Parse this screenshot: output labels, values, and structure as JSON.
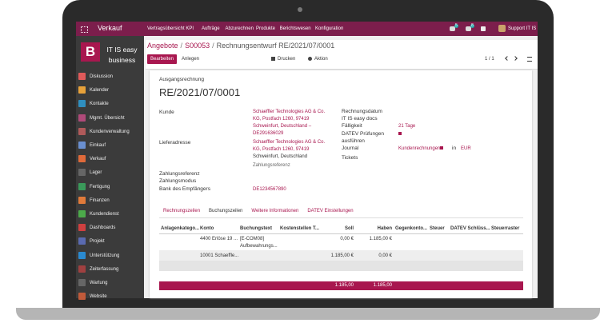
{
  "navbar": {
    "app": "Verkauf",
    "menu": [
      "Vertragsübersicht KPI",
      "Aufträge",
      "Abzurechnen",
      "Produkte",
      "Berichtswesen",
      "Konfiguration"
    ],
    "badges": [
      "5",
      "8"
    ],
    "user": "Support IT IS"
  },
  "sidebar": {
    "logo": "B",
    "company": "IT IS easy business",
    "items": [
      "Diskussion",
      "Kalender",
      "Kontakte",
      "Mgmt. Übersicht",
      "Kundenverwaltung",
      "Einkauf",
      "Verkauf",
      "Lager",
      "Fertigung",
      "Finanzen",
      "Kundendienst",
      "Dashboards",
      "Projekt",
      "Unterstützung",
      "Zeiterfassung",
      "Wartung",
      "Website"
    ]
  },
  "breadcrumb": {
    "parts": [
      "Angebote",
      "S00053",
      "Rechnungsentwurf RE/2021/07/0001"
    ],
    "separator": "/"
  },
  "buttons": {
    "edit": "Bearbeiten",
    "create": "Anlegen",
    "print": "Drucken",
    "action": "Aktion",
    "pager": "1 / 1"
  },
  "form": {
    "doc_type": "Ausgangsrechnung",
    "number": "RE/2021/07/0001",
    "customer": {
      "label": "Kunde",
      "lines": [
        "Schaeffler Technologies AG & Co.",
        "KG, Postfach 1260, 97419",
        "Schweinfurt, Deutschland –",
        "DE291636029"
      ]
    },
    "delivery": {
      "label": "Lieferadresse",
      "lines": [
        "Schaeffler Technologies AG & Co.",
        "KG, Postfach 1260, 97419",
        "Schweinfurt, Deutschland"
      ],
      "hint": "Zahlungsreferenz"
    },
    "payment_reference": "Zahlungsreferenz",
    "payment_mode": "Zahlungsmodus",
    "bank": {
      "label": "Bank des Empfängers",
      "value": "DE1234567890"
    },
    "right": {
      "invoice_date": "Rechnungsdatum",
      "docs": "IT IS easy docs",
      "due": {
        "label": "Fälligkeit",
        "value": "21 Tage"
      },
      "datev": [
        "DATEV Prüfungen",
        "ausführen"
      ],
      "journal": {
        "label": "Journal",
        "value": "Kundenrechnungen",
        "in": "in",
        "currency": "EUR"
      },
      "tickets": "Tickets"
    }
  },
  "tabs": [
    "Rechnungszeilen",
    "Buchungszeilen",
    "Weitere Informationen",
    "DATEV Einstellungen"
  ],
  "table": {
    "headers": [
      "Anlagenkatego...",
      "Konto",
      "Buchungstext",
      "Kostenstellen T...",
      "Soll",
      "Haben",
      "Gegenkonto...",
      "Steuer",
      "DATEV Schlüss...",
      "Steuerraster"
    ],
    "rows": [
      [
        null,
        "4400 Erlöse 19 ...",
        [
          "[E-COM08]",
          "Aufbewahrungs..."
        ],
        null,
        "0,00 €",
        "1.185,00 €"
      ],
      [
        null,
        "10001 Schaeffle...",
        null,
        null,
        "1.185,00 €",
        "0,00 €"
      ]
    ],
    "totals": [
      "1.185,00",
      "1.185,00"
    ]
  }
}
